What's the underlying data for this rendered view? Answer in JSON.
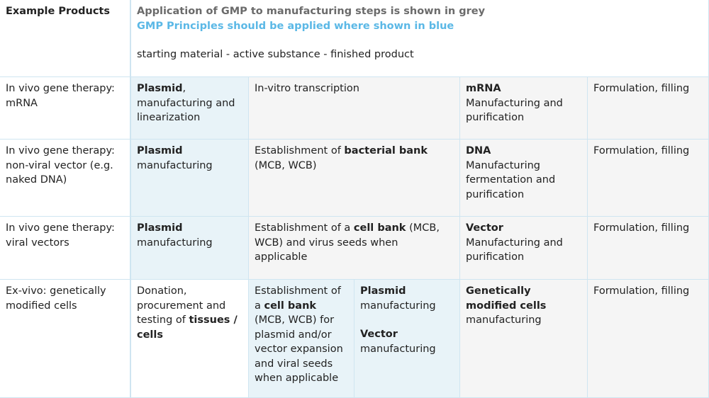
{
  "header": {
    "col1": "Example Products",
    "legend_grey": "Application of GMP to manufacturing steps is shown in grey",
    "legend_blue": "GMP Principles should be applied where shown in blue",
    "steps": "starting material - active substance - finished product"
  },
  "colors": {
    "grey_cell": "#f5f5f5",
    "blue_cell": "#e8f3f8",
    "border": "#cfe5f1",
    "blue_text": "#5bb8e6",
    "grey_text": "#6b6b6b"
  },
  "rows": [
    {
      "product": "In vivo gene therapy: mRNA",
      "cells": [
        {
          "shade": "blue",
          "parts": [
            {
              "t": "Plasmid",
              "b": true
            },
            {
              "t": ", manufacturing and linearization"
            }
          ]
        },
        {
          "shade": "grey",
          "parts": [
            {
              "t": "In-vitro transcription"
            }
          ]
        },
        {
          "shade": "grey",
          "parts": [
            {
              "t": "mRNA",
              "b": true,
              "br": true
            },
            {
              "t": "Manufacturing and purification"
            }
          ]
        },
        {
          "shade": "grey",
          "parts": [
            {
              "t": "Formulation, filling"
            }
          ]
        }
      ]
    },
    {
      "product": "In vivo gene therapy: non-viral vector (e.g. naked DNA)",
      "cells": [
        {
          "shade": "blue",
          "parts": [
            {
              "t": "Plasmid",
              "b": true,
              "br": true
            },
            {
              "t": "manufacturing"
            }
          ]
        },
        {
          "shade": "grey",
          "parts": [
            {
              "t": "Establishment of "
            },
            {
              "t": "bacterial bank",
              "b": true
            },
            {
              "t": " (MCB, WCB)"
            }
          ]
        },
        {
          "shade": "grey",
          "parts": [
            {
              "t": "DNA",
              "b": true,
              "br": true
            },
            {
              "t": "Manufacturing fermentation and purification"
            }
          ]
        },
        {
          "shade": "grey",
          "parts": [
            {
              "t": "Formulation, filling"
            }
          ]
        }
      ]
    },
    {
      "product": "In vivo gene therapy: viral vectors",
      "cells": [
        {
          "shade": "blue",
          "parts": [
            {
              "t": "Plasmid",
              "b": true,
              "br": true
            },
            {
              "t": "manufacturing"
            }
          ]
        },
        {
          "shade": "grey",
          "parts": [
            {
              "t": "Establishment of a "
            },
            {
              "t": "cell bank",
              "b": true
            },
            {
              "t": " (MCB, WCB) and virus seeds when applicable"
            }
          ]
        },
        {
          "shade": "grey",
          "parts": [
            {
              "t": "Vector",
              "b": true,
              "br": true
            },
            {
              "t": "Manufacturing and purification"
            }
          ]
        },
        {
          "shade": "grey",
          "parts": [
            {
              "t": "Formulation, filling"
            }
          ]
        }
      ]
    },
    {
      "product": "Ex-vivo: genetically modified cells",
      "cells": [
        {
          "shade": "white",
          "parts": [
            {
              "t": "Donation, procurement and testing of "
            },
            {
              "t": "tissues / cells",
              "b": true
            }
          ]
        },
        {
          "shade": "blue",
          "parts": [
            {
              "t": "Establishment of a "
            },
            {
              "t": "cell bank",
              "b": true
            },
            {
              "t": " (MCB, WCB) for plasmid and/or vector expansion and viral seeds when applicable"
            }
          ]
        },
        {
          "shade": "blue",
          "parts": [
            {
              "t": "Plasmid",
              "b": true,
              "br": true
            },
            {
              "t": "manufacturing",
              "gap": true
            },
            {
              "t": "Vector",
              "b": true,
              "br": true
            },
            {
              "t": "manufacturing"
            }
          ]
        },
        {
          "shade": "grey",
          "parts": [
            {
              "t": "Genetically modified cells",
              "b": true,
              "br": true
            },
            {
              "t": "manufacturing"
            }
          ]
        },
        {
          "shade": "grey",
          "parts": [
            {
              "t": "Formulation, filling"
            }
          ]
        }
      ]
    }
  ]
}
